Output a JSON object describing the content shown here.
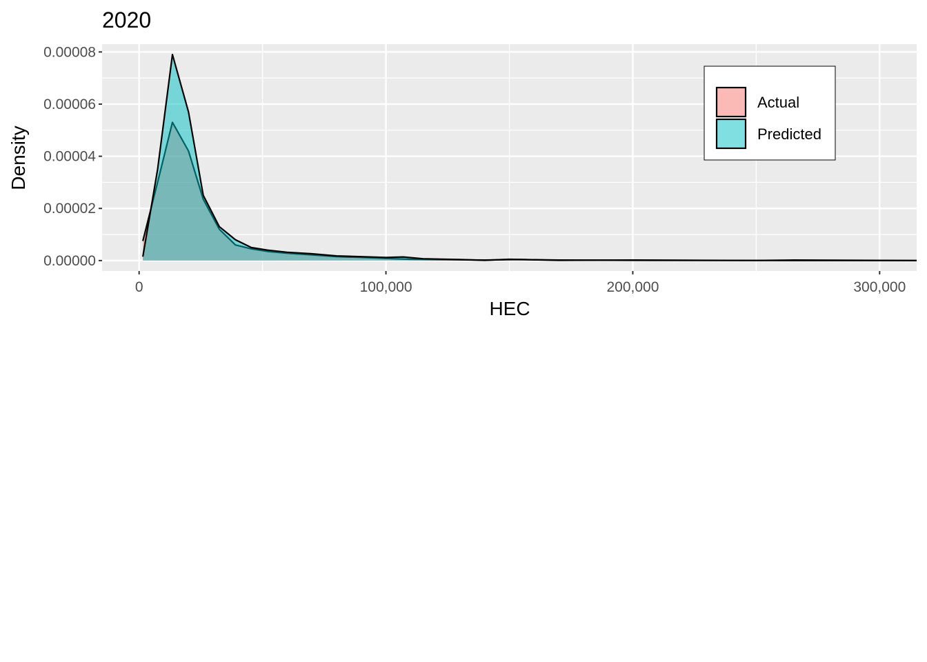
{
  "chart_data": {
    "type": "area",
    "title": "2020",
    "xlabel": "HEC",
    "ylabel": "Density",
    "xlim": [
      -15000,
      315000
    ],
    "ylim": [
      -4e-06,
      8.3e-05
    ],
    "x_ticks": [
      0,
      100000,
      200000,
      300000
    ],
    "x_tick_labels": [
      "0",
      "100,000",
      "200,000",
      "300,000"
    ],
    "y_ticks": [
      0,
      2e-05,
      4e-05,
      6e-05,
      8e-05
    ],
    "y_tick_labels": [
      "0.00000",
      "0.00002",
      "0.00004",
      "0.00006",
      "0.00008"
    ],
    "grid": true,
    "legend_position": "top-right",
    "series": [
      {
        "name": "Actual",
        "color": "#F8766D",
        "points": [
          [
            1500,
            7.5e-06
          ],
          [
            7500,
            3e-05
          ],
          [
            13500,
            5.3e-05
          ],
          [
            20000,
            4.2e-05
          ],
          [
            26000,
            2.35e-05
          ],
          [
            32500,
            1.2e-05
          ],
          [
            39000,
            6e-06
          ],
          [
            45500,
            4.5e-06
          ],
          [
            52000,
            3.5e-06
          ],
          [
            60000,
            2.8e-06
          ],
          [
            70000,
            2.2e-06
          ],
          [
            80000,
            1.5e-06
          ],
          [
            90000,
            1.2e-06
          ],
          [
            100000,
            8e-07
          ],
          [
            110000,
            5e-07
          ],
          [
            125000,
            3e-07
          ],
          [
            140000,
            2e-07
          ],
          [
            155000,
            4e-07
          ],
          [
            170000,
            2e-07
          ],
          [
            200000,
            1e-07
          ],
          [
            250000,
            5e-08
          ],
          [
            315000,
            2e-08
          ]
        ]
      },
      {
        "name": "Predicted",
        "color": "#00BFC4",
        "points": [
          [
            1500,
            1.5e-06
          ],
          [
            7500,
            3.5e-05
          ],
          [
            13500,
            7.9e-05
          ],
          [
            20000,
            5.7e-05
          ],
          [
            26000,
            2.5e-05
          ],
          [
            32500,
            1.3e-05
          ],
          [
            39000,
            8e-06
          ],
          [
            45500,
            5e-06
          ],
          [
            52000,
            4e-06
          ],
          [
            60000,
            3.2e-06
          ],
          [
            70000,
            2.6e-06
          ],
          [
            80000,
            1.8e-06
          ],
          [
            90000,
            1.5e-06
          ],
          [
            100000,
            1.2e-06
          ],
          [
            107000,
            1.4e-06
          ],
          [
            115000,
            7e-07
          ],
          [
            130000,
            4e-07
          ],
          [
            140000,
            1e-07
          ],
          [
            150000,
            5e-07
          ],
          [
            170000,
            1e-07
          ],
          [
            200000,
            2e-07
          ],
          [
            250000,
            5e-08
          ],
          [
            265000,
            2e-07
          ],
          [
            315000,
            2e-08
          ]
        ]
      }
    ]
  }
}
